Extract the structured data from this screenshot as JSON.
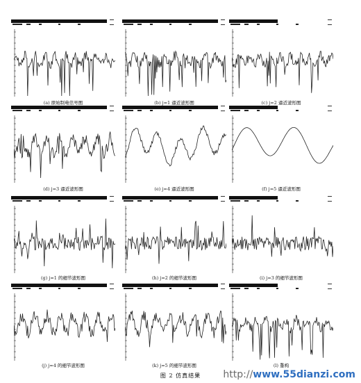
{
  "figure": {
    "title": "图 2   仿真结果",
    "panels": [
      {
        "id": "a",
        "caption": "(a) 原始制电信号图",
        "style": "dense"
      },
      {
        "id": "b",
        "caption": "(b) j=1 逼近波形图",
        "style": "dense"
      },
      {
        "id": "c",
        "caption": "(c) j=2 逼近波形图",
        "style": "dense"
      },
      {
        "id": "d",
        "caption": "(d) j=3 逼近波形图",
        "style": "medium"
      },
      {
        "id": "e",
        "caption": "(e) j=4 逼近波形图",
        "style": "smooth"
      },
      {
        "id": "f",
        "caption": "(f) j=5 逼近波形图",
        "style": "verysmooth"
      },
      {
        "id": "g",
        "caption": "(g) j=1 的细节波形图",
        "style": "detail"
      },
      {
        "id": "h",
        "caption": "(h) j=2 的细节波形图",
        "style": "detail"
      },
      {
        "id": "i",
        "caption": "(i) j=3 的细节波形图",
        "style": "detail"
      },
      {
        "id": "j",
        "caption": "(j) j=4 的细节波形图",
        "style": "medium"
      },
      {
        "id": "k",
        "caption": "(k) j=5 的细节波形图",
        "style": "medium"
      },
      {
        "id": "l",
        "caption": "(l) 重构",
        "style": "dense"
      }
    ]
  },
  "watermark": {
    "prefix": "http://",
    "domain": "www.55dianzi.com"
  }
}
